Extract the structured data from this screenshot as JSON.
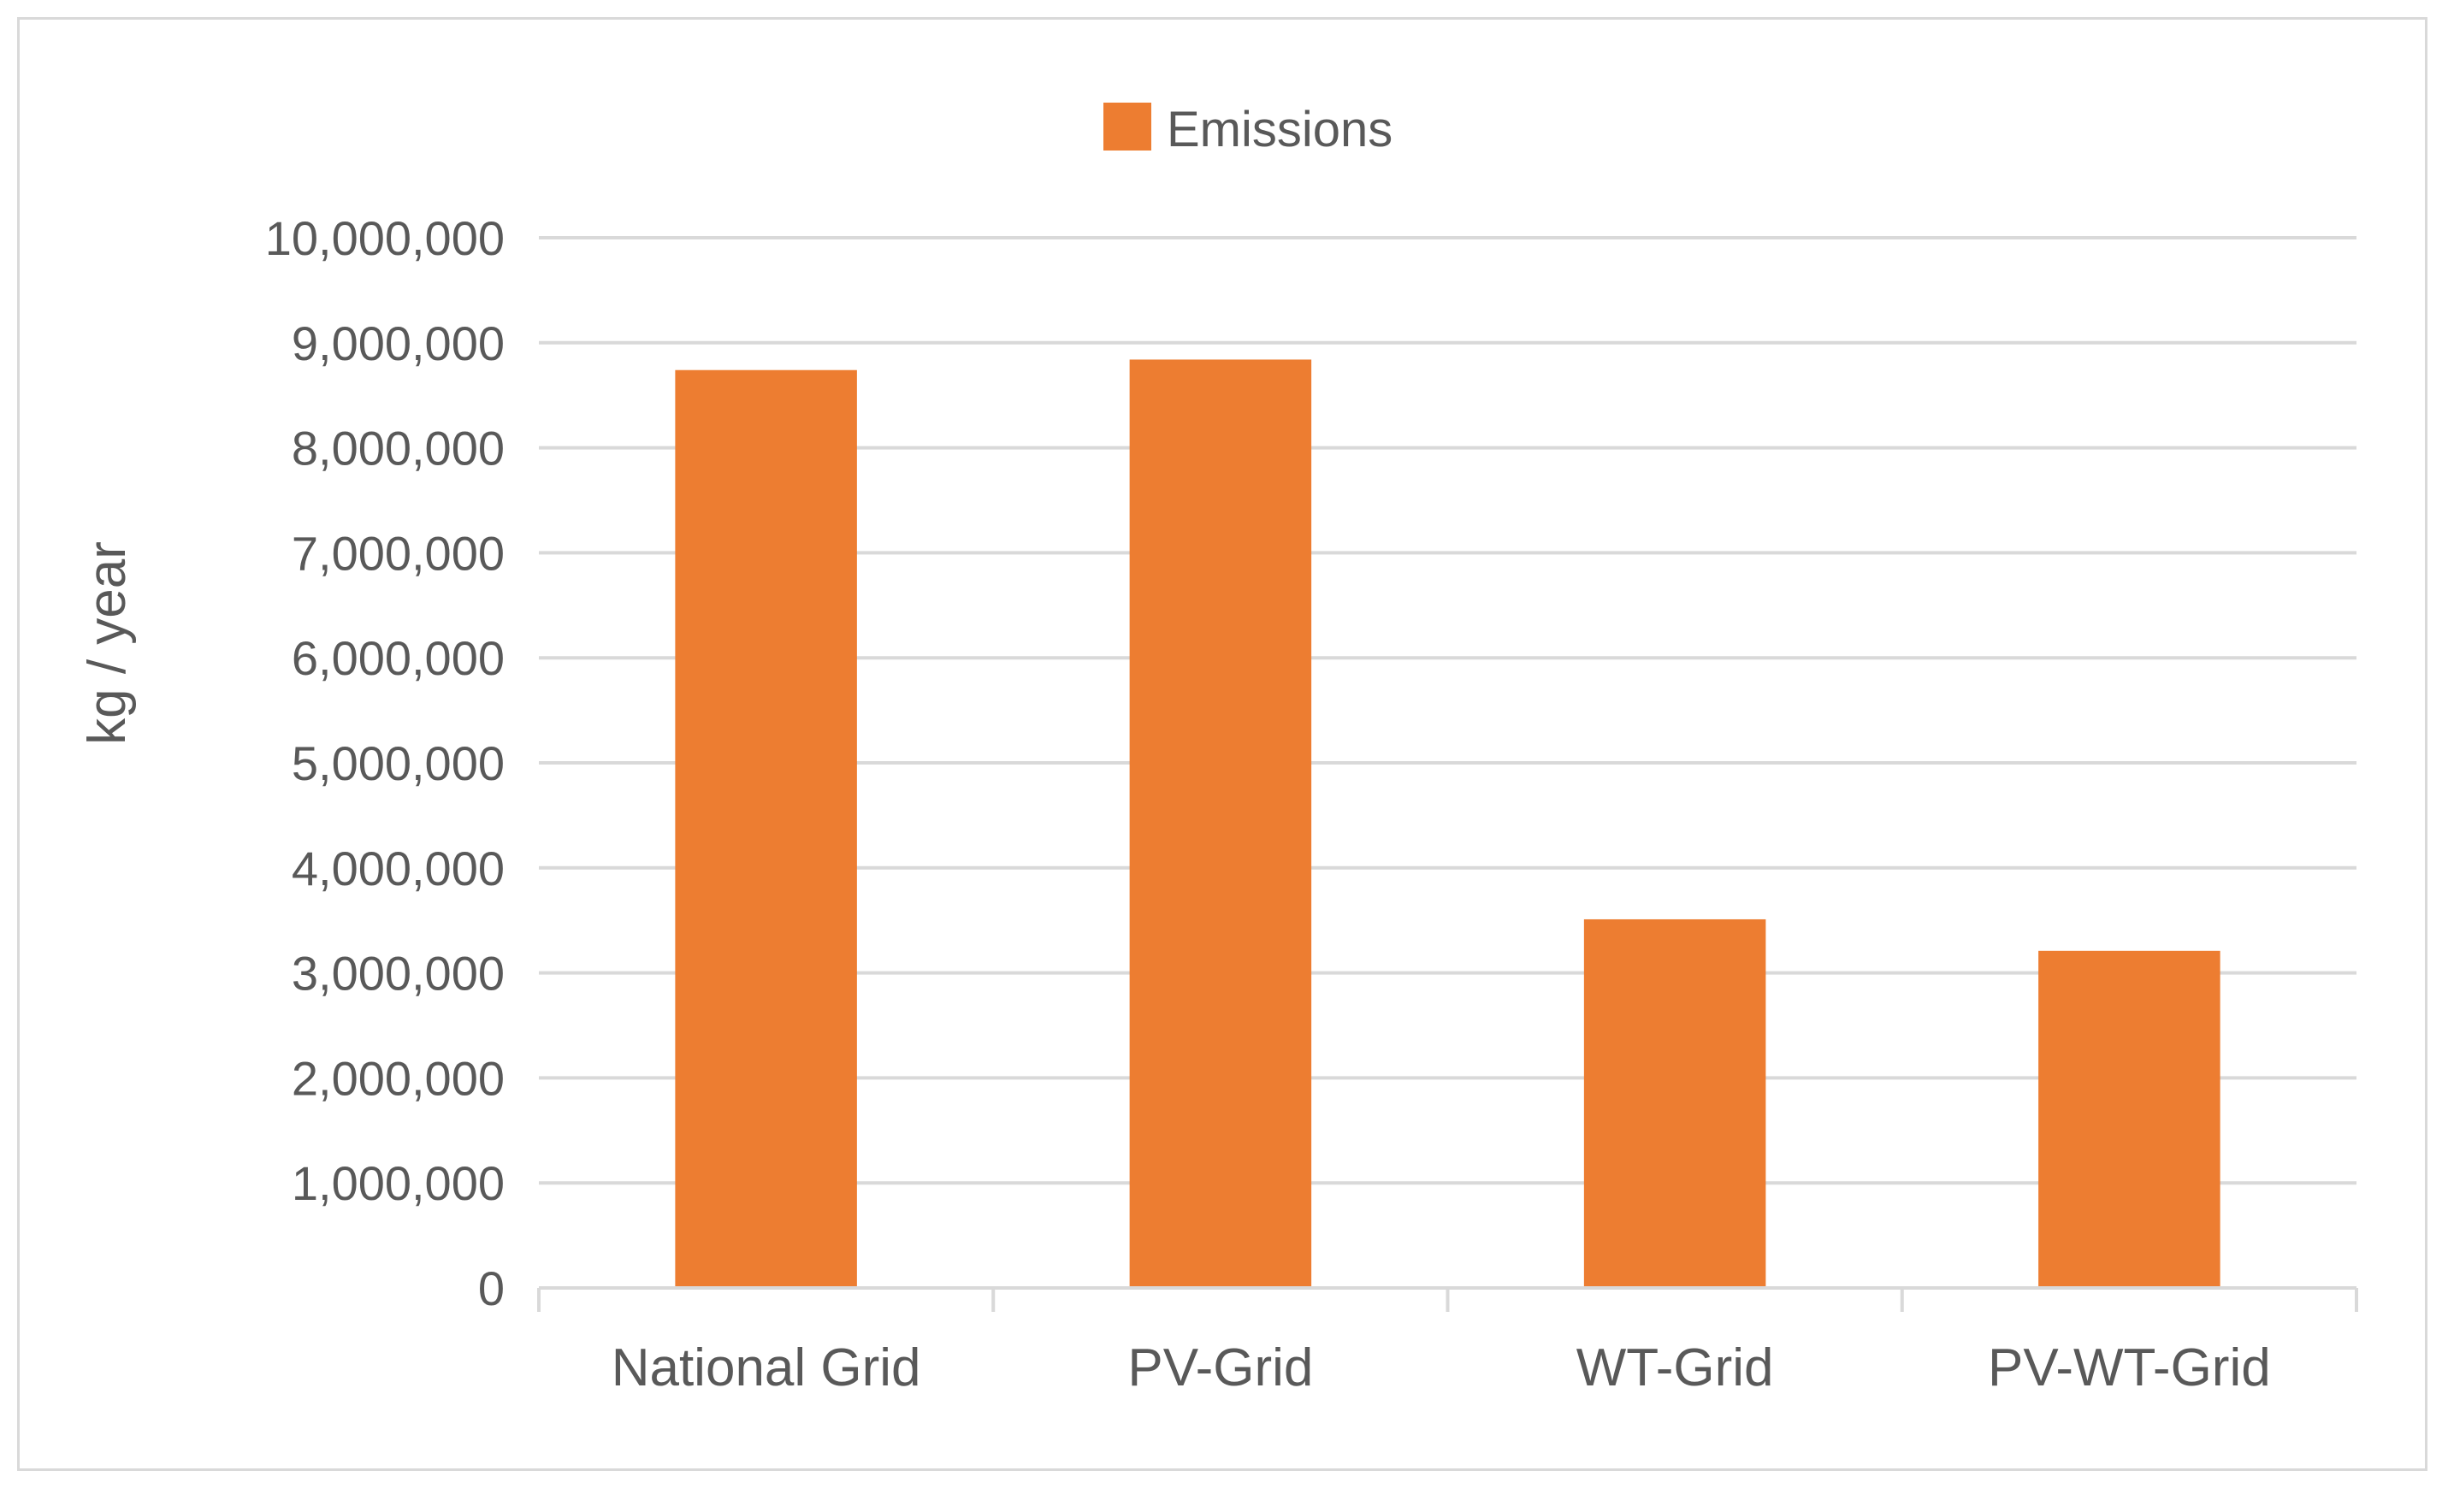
{
  "chart_data": {
    "type": "bar",
    "title": "",
    "xlabel": "",
    "ylabel": "kg / year",
    "categories": [
      "National Grid",
      "PV-Grid",
      "WT-Grid",
      "PV-WT-Grid"
    ],
    "series": [
      {
        "name": "Emissions",
        "color": "#ed7d31",
        "values": [
          8740000,
          8840000,
          3510000,
          3210000
        ]
      }
    ],
    "ylim": [
      0,
      10000000
    ],
    "yticks": [
      0,
      1000000,
      2000000,
      3000000,
      4000000,
      5000000,
      6000000,
      7000000,
      8000000,
      9000000,
      10000000
    ],
    "ytick_labels": [
      "0",
      "1,000,000",
      "2,000,000",
      "3,000,000",
      "4,000,000",
      "5,000,000",
      "6,000,000",
      "7,000,000",
      "8,000,000",
      "9,000,000",
      "10,000,000"
    ],
    "grid": true,
    "legend_position": "top-center"
  }
}
